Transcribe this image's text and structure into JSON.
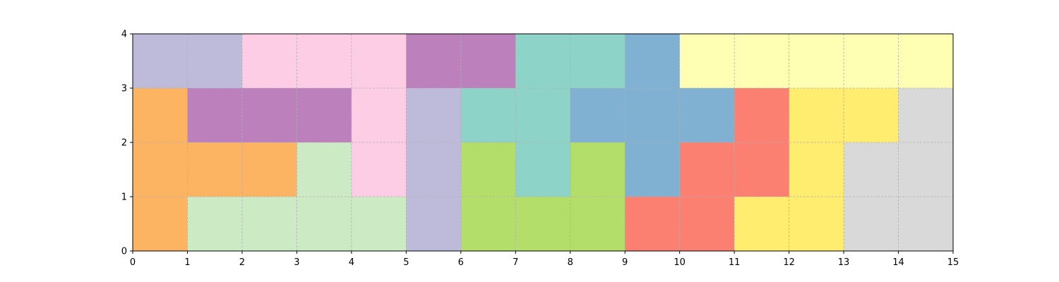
{
  "chart_data": {
    "type": "heatmap",
    "title": "",
    "xlabel": "",
    "ylabel": "",
    "xlim": [
      0,
      15
    ],
    "ylim": [
      0,
      4
    ],
    "grid": true,
    "x_ticks": [
      "0",
      "1",
      "2",
      "3",
      "4",
      "5",
      "6",
      "7",
      "8",
      "9",
      "10",
      "11",
      "12",
      "13",
      "14",
      "15"
    ],
    "y_ticks": [
      "0",
      "1",
      "2",
      "3",
      "4"
    ],
    "rows_top_to_bottom": [
      [
        "#bebada",
        "#bebada",
        "#fccde5",
        "#fccde5",
        "#fccde5",
        "#bc80bd",
        "#bc80bd",
        "#8dd3c7",
        "#8dd3c7",
        "#80b1d3",
        "#ffffb3",
        "#ffffb3",
        "#ffffb3",
        "#ffffb3",
        "#ffffb3"
      ],
      [
        "#fdb462",
        "#bc80bd",
        "#bc80bd",
        "#bc80bd",
        "#fccde5",
        "#bebada",
        "#8dd3c7",
        "#8dd3c7",
        "#80b1d3",
        "#80b1d3",
        "#80b1d3",
        "#fb8072",
        "#ffed6f",
        "#ffed6f",
        "#d9d9d9"
      ],
      [
        "#fdb462",
        "#fdb462",
        "#fdb462",
        "#ccebc5",
        "#fccde5",
        "#bebada",
        "#b3de69",
        "#8dd3c7",
        "#b3de69",
        "#80b1d3",
        "#fb8072",
        "#fb8072",
        "#ffed6f",
        "#d9d9d9",
        "#d9d9d9"
      ],
      [
        "#fdb462",
        "#ccebc5",
        "#ccebc5",
        "#ccebc5",
        "#ccebc5",
        "#bebada",
        "#b3de69",
        "#b3de69",
        "#b3de69",
        "#fb8072",
        "#fb8072",
        "#ffed6f",
        "#ffed6f",
        "#d9d9d9",
        "#d9d9d9"
      ]
    ]
  }
}
